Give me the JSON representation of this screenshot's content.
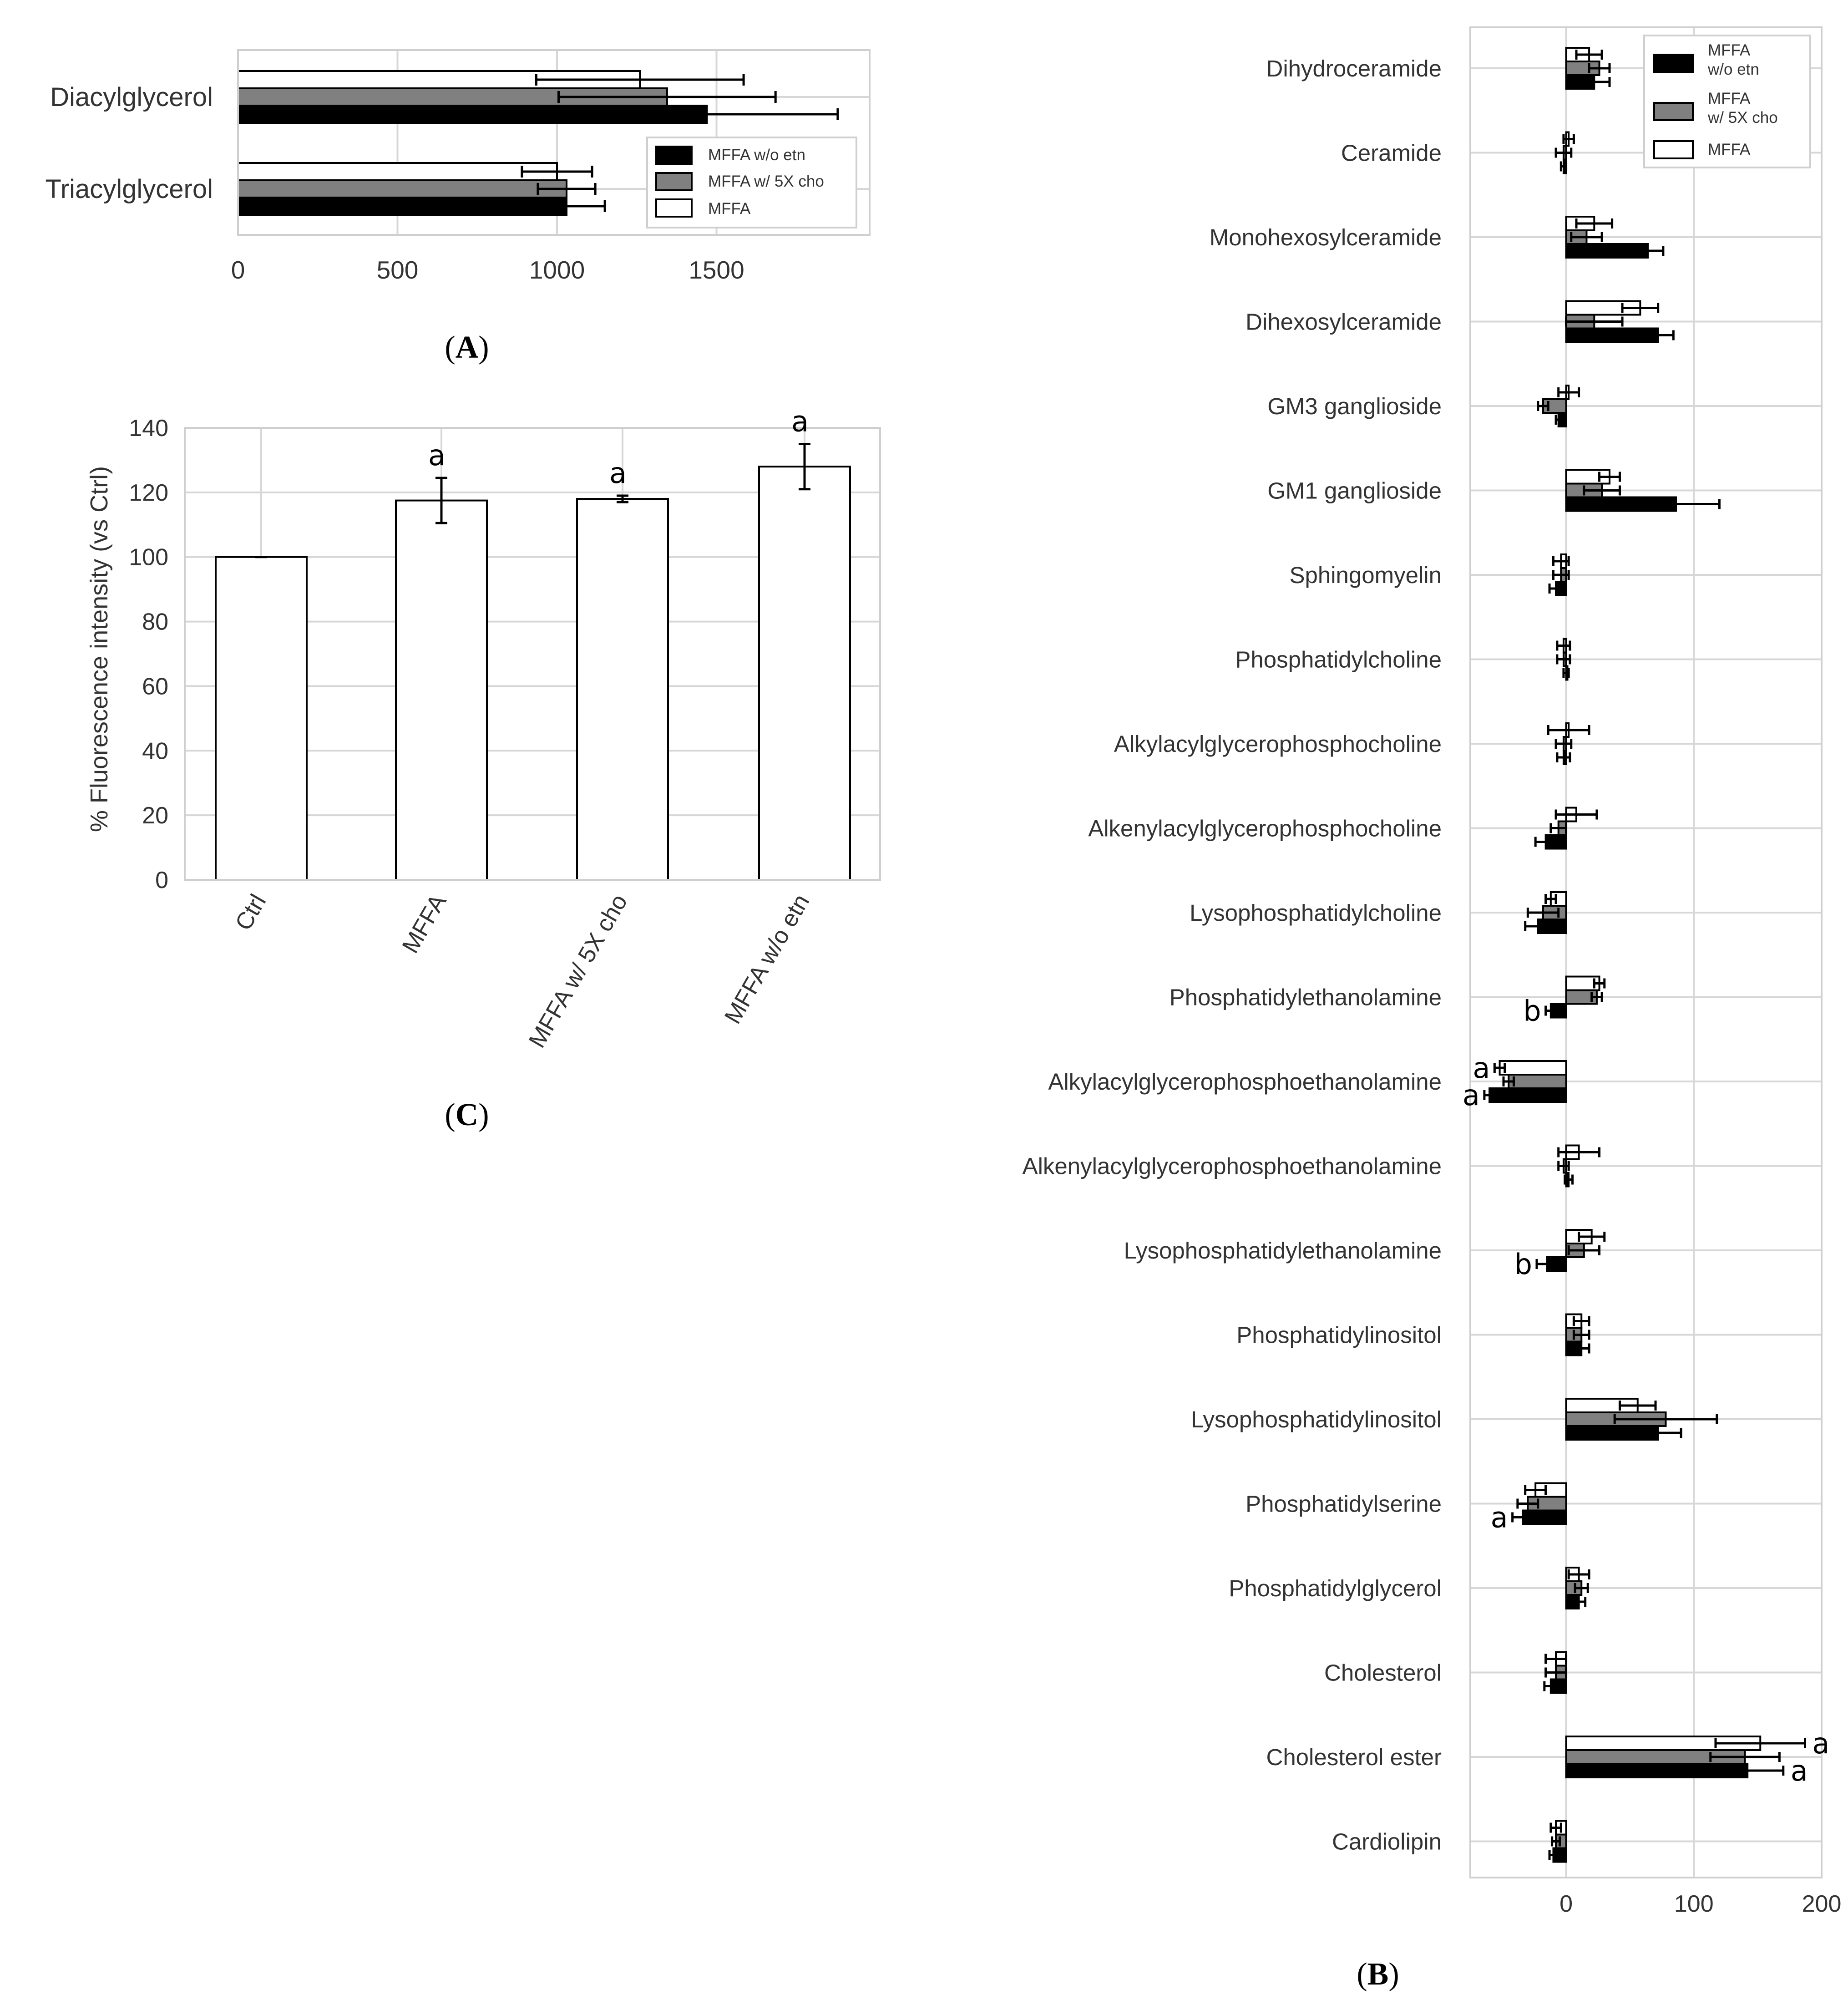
{
  "colors": {
    "black_bar": "#000000",
    "gray_bar": "#808080",
    "white_bar": "#ffffff",
    "edge": "#000000"
  },
  "charts": {
    "A": {
      "panel_label": "A",
      "legend": [
        "MFFA w/o etn",
        "MFFA w/ 5X cho",
        "MFFA"
      ],
      "xticks": [
        "0",
        "500",
        "1000",
        "1500"
      ]
    },
    "B": {
      "panel_label": "B",
      "legend": [
        "MFFA\nw/o etn",
        "MFFA\nw/ 5X cho",
        "MFFA"
      ],
      "xticks": [
        "0",
        "100",
        "200"
      ]
    },
    "C": {
      "panel_label": "C",
      "ylabel": "% Fluorescence intensity (vs Ctrl)",
      "yticks": [
        "0",
        "20",
        "40",
        "60",
        "80",
        "100",
        "120",
        "140"
      ]
    }
  },
  "chart_data": [
    {
      "id": "A",
      "type": "bar",
      "orientation": "horizontal",
      "categories": [
        "Diacylglycerol",
        "Triacylglycerol"
      ],
      "series": [
        {
          "name": "MFFA w/o etn",
          "color": "#000000",
          "values": [
            1470,
            1030
          ],
          "errors": [
            410,
            120
          ]
        },
        {
          "name": "MFFA w/ 5X cho",
          "color": "#808080",
          "values": [
            1345,
            1030
          ],
          "errors": [
            340,
            90
          ]
        },
        {
          "name": "MFFA",
          "color": "#ffffff",
          "values": [
            1260,
            1000
          ],
          "errors": [
            325,
            110
          ]
        }
      ],
      "xlim": [
        0,
        1980
      ],
      "xticks": [
        0,
        500,
        1000,
        1500
      ],
      "legend_position": "lower-right",
      "grid": true
    },
    {
      "id": "B",
      "type": "bar",
      "orientation": "horizontal",
      "categories": [
        "Dihydroceramide",
        "Ceramide",
        "Monohexosylceramide",
        "Dihexosylceramide",
        "GM3 ganglioside",
        "GM1 ganglioside",
        "Sphingomyelin",
        "Phosphatidylcholine",
        "Alkylacylglycerophosphocholine",
        "Alkenylacylglycerophosphocholine",
        "Lysophosphatidylcholine",
        "Phosphatidylethanolamine",
        "Alkylacylglycerophosphoethanolamine",
        "Alkenylacylglycerophosphoethanolamine",
        "Lysophosphatidylethanolamine",
        "Phosphatidylinositol",
        "Lysophosphatidylinositol",
        "Phosphatidylserine",
        "Phosphatidylglycerol",
        "Cholesterol",
        "Cholesterol ester",
        "Cardiolipin"
      ],
      "series": [
        {
          "name": "MFFA w/o etn",
          "color": "#000000",
          "values": [
            22,
            -2,
            64,
            72,
            -6,
            86,
            -8,
            0,
            -2,
            -16,
            -22,
            -12,
            -60,
            2,
            -15,
            12,
            72,
            -34,
            10,
            -12,
            142,
            -10
          ],
          "errors": [
            12,
            2,
            12,
            12,
            2,
            34,
            5,
            2,
            5,
            8,
            10,
            4,
            4,
            3,
            8,
            6,
            18,
            8,
            5,
            5,
            28,
            3
          ]
        },
        {
          "name": "MFFA w/ 5X cho",
          "color": "#808080",
          "values": [
            26,
            -2,
            16,
            22,
            -18,
            28,
            -4,
            -2,
            -2,
            -6,
            -18,
            24,
            -45,
            -2,
            14,
            12,
            78,
            -30,
            12,
            -8,
            140,
            -8
          ],
          "errors": [
            8,
            6,
            12,
            22,
            4,
            14,
            6,
            5,
            6,
            6,
            12,
            4,
            4,
            4,
            12,
            6,
            40,
            8,
            5,
            8,
            27,
            3
          ]
        },
        {
          "name": "MFFA",
          "color": "#ffffff",
          "values": [
            18,
            2,
            22,
            58,
            2,
            34,
            -4,
            -2,
            2,
            8,
            -12,
            26,
            -52,
            10,
            20,
            12,
            56,
            -24,
            10,
            -8,
            152,
            -8
          ],
          "errors": [
            10,
            4,
            14,
            14,
            8,
            8,
            6,
            5,
            16,
            16,
            4,
            4,
            4,
            16,
            10,
            6,
            14,
            8,
            8,
            8,
            35,
            4
          ]
        }
      ],
      "annotations": [
        {
          "category": "Phosphatidylethanolamine",
          "series": "MFFA w/o etn",
          "text": "b"
        },
        {
          "category": "Alkylacylglycerophosphoethanolamine",
          "series": "MFFA",
          "text": "a"
        },
        {
          "category": "Alkylacylglycerophosphoethanolamine",
          "series": "MFFA w/o etn",
          "text": "a"
        },
        {
          "category": "Lysophosphatidylethanolamine",
          "series": "MFFA w/o etn",
          "text": "b"
        },
        {
          "category": "Phosphatidylserine",
          "series": "MFFA w/o etn",
          "text": "a"
        },
        {
          "category": "Cholesterol ester",
          "series": "MFFA",
          "text": "a"
        },
        {
          "category": "Cholesterol ester",
          "series": "MFFA w/o etn",
          "text": "a"
        }
      ],
      "xlim": [
        -75,
        200
      ],
      "xticks": [
        0,
        100,
        200
      ],
      "legend_position": "top-right",
      "grid": true
    },
    {
      "id": "C",
      "type": "bar",
      "orientation": "vertical",
      "categories": [
        "Ctrl",
        "MFFA",
        "MFFA w/ 5X cho",
        "MFFA w/o etn"
      ],
      "values": [
        100,
        117.5,
        118,
        128
      ],
      "errors": [
        0,
        7,
        1,
        7
      ],
      "annotations": [
        "",
        "a",
        "a",
        "a"
      ],
      "ylabel": "% Fluorescence intensity (vs Ctrl)",
      "ylim": [
        0,
        140
      ],
      "yticks": [
        0,
        20,
        40,
        60,
        80,
        100,
        120,
        140
      ],
      "grid": true
    }
  ]
}
